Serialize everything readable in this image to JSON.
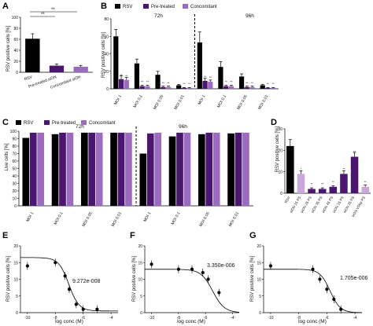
{
  "colors": {
    "rsv": "#000000",
    "pre": "#4a1670",
    "conc": "#9b6bc0",
    "conc_light": "#c7a7dd"
  },
  "panels": {
    "A": {
      "letter": "A",
      "ylabel": "RSV positive cells [%]",
      "sig1": "**",
      "sig2": "**"
    },
    "B": {
      "letter": "B",
      "ylabel": "RSV positive cells [%]",
      "time1": "72h",
      "time2": "96h",
      "legend": [
        "RSV",
        "Pre-treated",
        "Concomitant"
      ],
      "sig": "**"
    },
    "C": {
      "letter": "C",
      "ylabel": "Live cells [%]",
      "time1": "72h",
      "time2": "96h",
      "legend": [
        "RSV",
        "Pre-treated",
        "Concomitant"
      ]
    },
    "D": {
      "letter": "D",
      "ylabel": "RSV positive cells [%]",
      "sig": "**",
      "sig_single": "*"
    },
    "E": {
      "letter": "E",
      "ylabel": "RSV positive cells [%]",
      "xlabel": "log conc (M)",
      "ec50": "9.272e-008"
    },
    "F": {
      "letter": "F",
      "ylabel": "RSV positive cells [%]",
      "xlabel": "log conc (M)",
      "ec50": "3.350e-006"
    },
    "G": {
      "letter": "G",
      "ylabel": "RSV positive cells [%]",
      "xlabel": "log conc (M)",
      "ec50": "1.705e-006"
    }
  },
  "chart_data": [
    {
      "panel": "A",
      "type": "bar",
      "categories": [
        "RSV",
        "Pre-treated siON",
        "Concomitant siON"
      ],
      "values": [
        61,
        12,
        10
      ],
      "errors": [
        9,
        3,
        2
      ],
      "ylabel": "RSV positive cells [%]",
      "ylim": [
        0,
        100
      ],
      "yticks": [
        0,
        20,
        40,
        60,
        80,
        100
      ]
    },
    {
      "panel": "B",
      "type": "bar",
      "groups": [
        "72h",
        "96h"
      ],
      "categories": [
        "MOI 1",
        "MOI 0.1",
        "MOI 0.05",
        "MOI 0.01"
      ],
      "series": [
        {
          "name": "RSV",
          "values_72h": [
            60,
            29,
            16,
            4
          ],
          "values_96h": [
            53,
            25,
            14,
            4
          ],
          "errors_72h": [
            8,
            5,
            4,
            1
          ],
          "errors_96h": [
            12,
            6,
            3,
            1
          ]
        },
        {
          "name": "Pre-treated",
          "values_72h": [
            11,
            3,
            2,
            1
          ],
          "values_96h": [
            9,
            3,
            2,
            1
          ],
          "errors_72h": [
            4,
            1,
            1,
            0.5
          ],
          "errors_96h": [
            3,
            1,
            1,
            0.5
          ]
        },
        {
          "name": "Concomitant",
          "values_72h": [
            10,
            3,
            2,
            1
          ],
          "values_96h": [
            8,
            3,
            2,
            1
          ],
          "errors_72h": [
            3,
            1,
            1,
            0.5
          ],
          "errors_96h": [
            2,
            1,
            1,
            0.5
          ]
        }
      ],
      "ylabel": "RSV positive cells [%]",
      "ylim": [
        0,
        80
      ],
      "yticks": [
        0,
        20,
        40,
        60,
        80
      ]
    },
    {
      "panel": "C",
      "type": "bar",
      "groups": [
        "72h",
        "96h"
      ],
      "categories": [
        "MOI 1",
        "MOI 0.1",
        "MOI 0.05",
        "MOI 0.01"
      ],
      "series": [
        {
          "name": "RSV",
          "values_72h": [
            91,
            96,
            98,
            98
          ],
          "values_96h": [
            70,
            93,
            96,
            97
          ]
        },
        {
          "name": "Pre-treated",
          "values_72h": [
            98,
            98,
            98,
            98
          ],
          "values_96h": [
            97,
            98,
            98,
            98
          ]
        },
        {
          "name": "Concomitant",
          "values_72h": [
            98,
            98,
            98,
            98
          ],
          "values_96h": [
            98,
            98,
            98,
            98
          ]
        }
      ],
      "ylabel": "Live cells [%]",
      "ylim": [
        0,
        100
      ],
      "yticks": [
        0,
        10,
        20,
        30,
        40,
        50,
        60,
        70,
        80,
        90,
        100
      ]
    },
    {
      "panel": "D",
      "type": "bar",
      "categories": [
        "RSV",
        "siON 15 PS",
        "siON 25 PS",
        "siON 35 PS",
        "siON 45 PS",
        "siON 15 PS",
        "siON 25 PS",
        "siON VDbp PS"
      ],
      "values": [
        22,
        9,
        2,
        2,
        3,
        9,
        17,
        3
      ],
      "errors": [
        3,
        1.5,
        0.5,
        0.5,
        0.5,
        1.5,
        2,
        0.8
      ],
      "ylabel": "RSV positive cells [%]",
      "ylim": [
        0,
        30
      ],
      "yticks": [
        0,
        10,
        20,
        30
      ]
    },
    {
      "panel": "E",
      "type": "scatter",
      "x": [
        -10,
        -8,
        -7.3,
        -7,
        -6.5,
        -6,
        -5
      ],
      "y": [
        14,
        15,
        11,
        7,
        2.5,
        1,
        1
      ],
      "fit_params": {
        "top": 16.5,
        "bottom": 0.5,
        "logEC50": -7.03,
        "hill": 1.2
      },
      "ylabel": "RSV positive cells [%]",
      "xlabel": "log conc (M)",
      "xlim": [
        -10.5,
        -3.5
      ],
      "ylim": [
        0,
        20
      ],
      "xticks": [
        -10,
        -8,
        -6,
        -4
      ],
      "yticks": [
        0,
        5,
        10,
        15,
        20
      ],
      "annotation": "9.272e-008"
    },
    {
      "panel": "F",
      "type": "scatter",
      "x": [
        -10,
        -8,
        -7,
        -6.2,
        -5.8,
        -5
      ],
      "y": [
        14.5,
        13,
        13,
        12,
        10,
        6
      ],
      "fit_params": {
        "top": 13,
        "bottom": 0,
        "logEC50": -5.47,
        "hill": 1
      },
      "ylabel": "RSV positive cells [%]",
      "xlabel": "log conc (M)",
      "xlim": [
        -10.5,
        -3.5
      ],
      "ylim": [
        0,
        20
      ],
      "xticks": [
        -10,
        -8,
        -6,
        -4
      ],
      "yticks": [
        0,
        5,
        10,
        15,
        20
      ],
      "annotation": "3.350e-006"
    },
    {
      "panel": "G",
      "type": "scatter",
      "x": [
        -10,
        -7,
        -6.5,
        -6,
        -5.5,
        -5
      ],
      "y": [
        14,
        13,
        10,
        7,
        4,
        1
      ],
      "fit_params": {
        "top": 13,
        "bottom": 0,
        "logEC50": -5.77,
        "hill": 1.2
      },
      "ylabel": "RSV positive cells [%]",
      "xlabel": "log conc (M)",
      "xlim": [
        -10.5,
        -3.5
      ],
      "ylim": [
        0,
        20
      ],
      "xticks": [
        -10,
        -8,
        -6,
        -4
      ],
      "yticks": [
        0,
        5,
        10,
        15,
        20
      ],
      "annotation": "1.705e-006"
    }
  ]
}
